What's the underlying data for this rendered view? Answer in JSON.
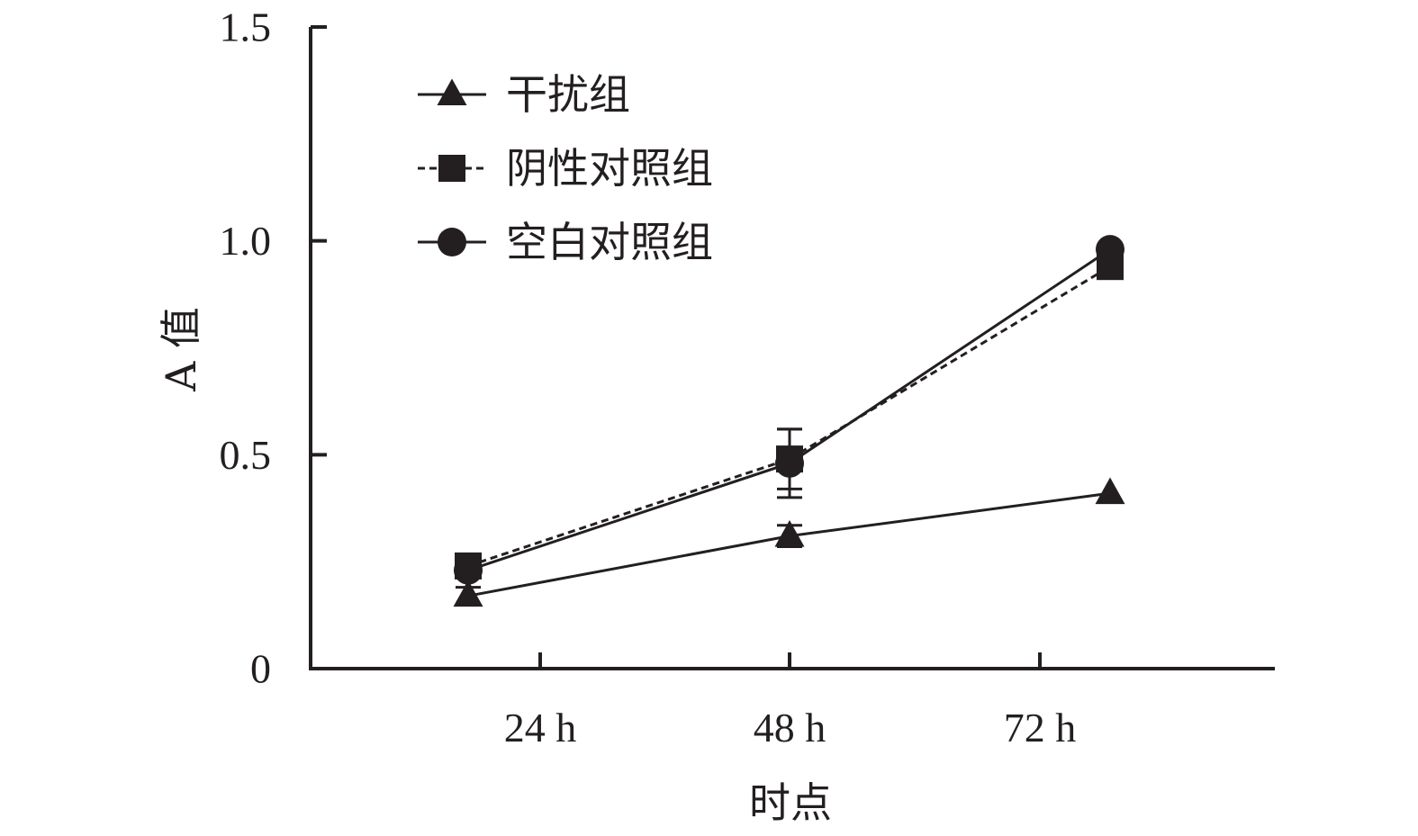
{
  "chart_data": {
    "type": "line",
    "xlabel": "时点",
    "ylabel": "A 值",
    "categories": [
      "24 h",
      "48 h",
      "72 h"
    ],
    "ylim": [
      0,
      1.5
    ],
    "yticks": [
      0,
      0.5,
      1.0,
      1.5
    ],
    "ytick_labels": [
      "0",
      "0.5",
      "1.0",
      "1.5"
    ],
    "grid": false,
    "legend_position": "top-left",
    "series": [
      {
        "name": "干扰组",
        "marker": "triangle",
        "line_style": "solid",
        "color": "#231f20",
        "values": [
          0.17,
          0.31,
          0.41
        ],
        "errors": [
          0.02,
          0.025,
          0.0
        ]
      },
      {
        "name": "阴性对照组",
        "marker": "square",
        "line_style": "dashed",
        "color": "#231f20",
        "values": [
          0.24,
          0.49,
          0.94
        ],
        "errors": [
          0.02,
          0.07,
          0.0
        ]
      },
      {
        "name": "空白对照组",
        "marker": "circle",
        "line_style": "solid",
        "color": "#231f20",
        "values": [
          0.23,
          0.48,
          0.98
        ],
        "errors": [
          0.015,
          0.08,
          0.0
        ]
      }
    ]
  }
}
